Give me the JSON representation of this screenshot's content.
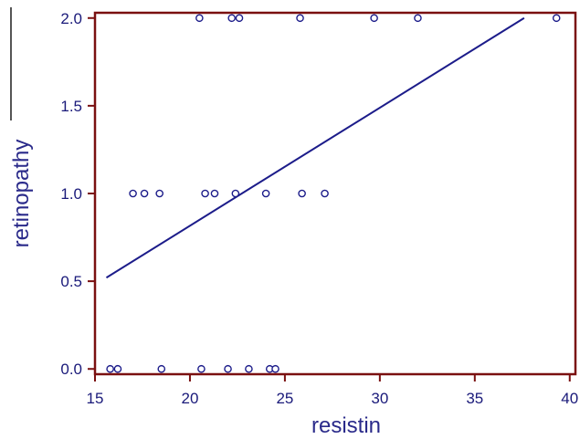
{
  "chart_data": {
    "type": "scatter",
    "xlabel": "resistin",
    "ylabel": "retinopathy",
    "xlim": [
      15,
      40.3
    ],
    "ylim": [
      -0.03,
      2.03
    ],
    "x_ticks": [
      "15",
      "20",
      "25",
      "30",
      "35",
      "40"
    ],
    "y_ticks": [
      "0.0",
      "0.5",
      "1.0",
      "1.5",
      "2.0"
    ],
    "grid": false,
    "legend": "none",
    "colors": {
      "frame": "#7a1010",
      "points": "#1c1c8a",
      "line": "#1c1c8a",
      "text": "#1a1a7a"
    },
    "series": [
      {
        "points": [
          [
            15.8,
            0
          ],
          [
            16.2,
            0
          ],
          [
            18.5,
            0
          ],
          [
            20.6,
            0
          ],
          [
            22.0,
            0
          ],
          [
            23.1,
            0
          ],
          [
            24.2,
            0
          ],
          [
            24.5,
            0
          ],
          [
            17.0,
            1
          ],
          [
            17.6,
            1
          ],
          [
            18.4,
            1
          ],
          [
            20.8,
            1
          ],
          [
            21.3,
            1
          ],
          [
            22.4,
            1
          ],
          [
            24.0,
            1
          ],
          [
            25.9,
            1
          ],
          [
            27.1,
            1
          ],
          [
            20.5,
            2
          ],
          [
            22.2,
            2
          ],
          [
            22.6,
            2
          ],
          [
            25.8,
            2
          ],
          [
            29.7,
            2
          ],
          [
            32.0,
            2
          ],
          [
            39.3,
            2
          ]
        ]
      }
    ],
    "regression_line": {
      "x": [
        15.6,
        37.6
      ],
      "y": [
        0.52,
        2.0
      ]
    }
  }
}
